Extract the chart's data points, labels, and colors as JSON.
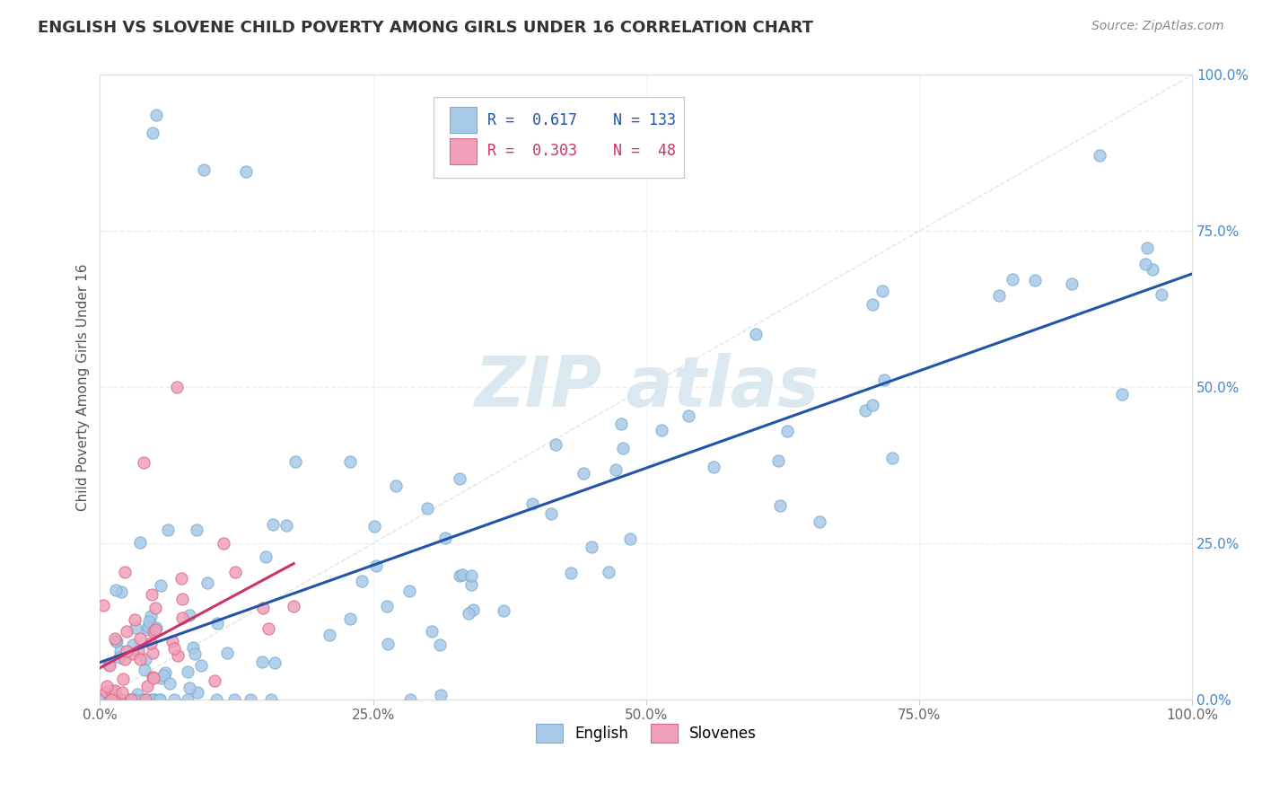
{
  "title": "ENGLISH VS SLOVENE CHILD POVERTY AMONG GIRLS UNDER 16 CORRELATION CHART",
  "source": "Source: ZipAtlas.com",
  "ylabel": "Child Poverty Among Girls Under 16",
  "background_color": "#ffffff",
  "plot_bg_color": "#ffffff",
  "english_color": "#a8c8e8",
  "english_edge_color": "#7aaed0",
  "slovene_color": "#f0a0b8",
  "slovene_edge_color": "#e06888",
  "english_line_color": "#2255aa",
  "slovene_line_color": "#cc3366",
  "diagonal_color": "#dddddd",
  "R_english": 0.617,
  "N_english": 133,
  "R_slovene": 0.303,
  "N_slovene": 48,
  "watermark_color": "#dce8f0",
  "ytick_color": "#4488cc",
  "xtick_color": "#666666",
  "ylabel_color": "#555555",
  "title_color": "#333333",
  "source_color": "#888888",
  "grid_color": "#e8eef4"
}
